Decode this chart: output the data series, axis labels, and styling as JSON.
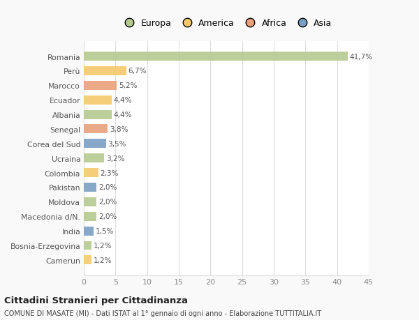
{
  "countries": [
    "Romania",
    "Perù",
    "Marocco",
    "Ecuador",
    "Albania",
    "Senegal",
    "Corea del Sud",
    "Ucraina",
    "Colombia",
    "Pakistan",
    "Moldova",
    "Macedonia d/N.",
    "India",
    "Bosnia-Erzegovina",
    "Camerun"
  ],
  "values": [
    41.7,
    6.7,
    5.2,
    4.4,
    4.4,
    3.8,
    3.5,
    3.2,
    2.3,
    2.0,
    2.0,
    2.0,
    1.5,
    1.2,
    1.2
  ],
  "labels": [
    "41,7%",
    "6,7%",
    "5,2%",
    "4,4%",
    "4,4%",
    "3,8%",
    "3,5%",
    "3,2%",
    "2,3%",
    "2,0%",
    "2,0%",
    "2,0%",
    "1,5%",
    "1,2%",
    "1,2%"
  ],
  "colors": [
    "#b5c98e",
    "#f5c96a",
    "#e8a07a",
    "#f5c96a",
    "#b5c98e",
    "#e8a07a",
    "#7a9fc4",
    "#b5c98e",
    "#f5c96a",
    "#7a9fc4",
    "#b5c98e",
    "#b5c98e",
    "#7a9fc4",
    "#b5c98e",
    "#f5c96a"
  ],
  "legend_labels": [
    "Europa",
    "America",
    "Africa",
    "Asia"
  ],
  "legend_colors": [
    "#b5c98e",
    "#f5c96a",
    "#e8a07a",
    "#7a9fc4"
  ],
  "title": "Cittadini Stranieri per Cittadinanza",
  "subtitle": "COMUNE DI MASATE (MI) - Dati ISTAT al 1° gennaio di ogni anno - Elaborazione TUTTITALIA.IT",
  "xlim": [
    0,
    45
  ],
  "xticks": [
    0,
    5,
    10,
    15,
    20,
    25,
    30,
    35,
    40,
    45
  ],
  "background_color": "#f9f9f9",
  "bar_background_color": "#ffffff",
  "grid_color": "#dddddd"
}
